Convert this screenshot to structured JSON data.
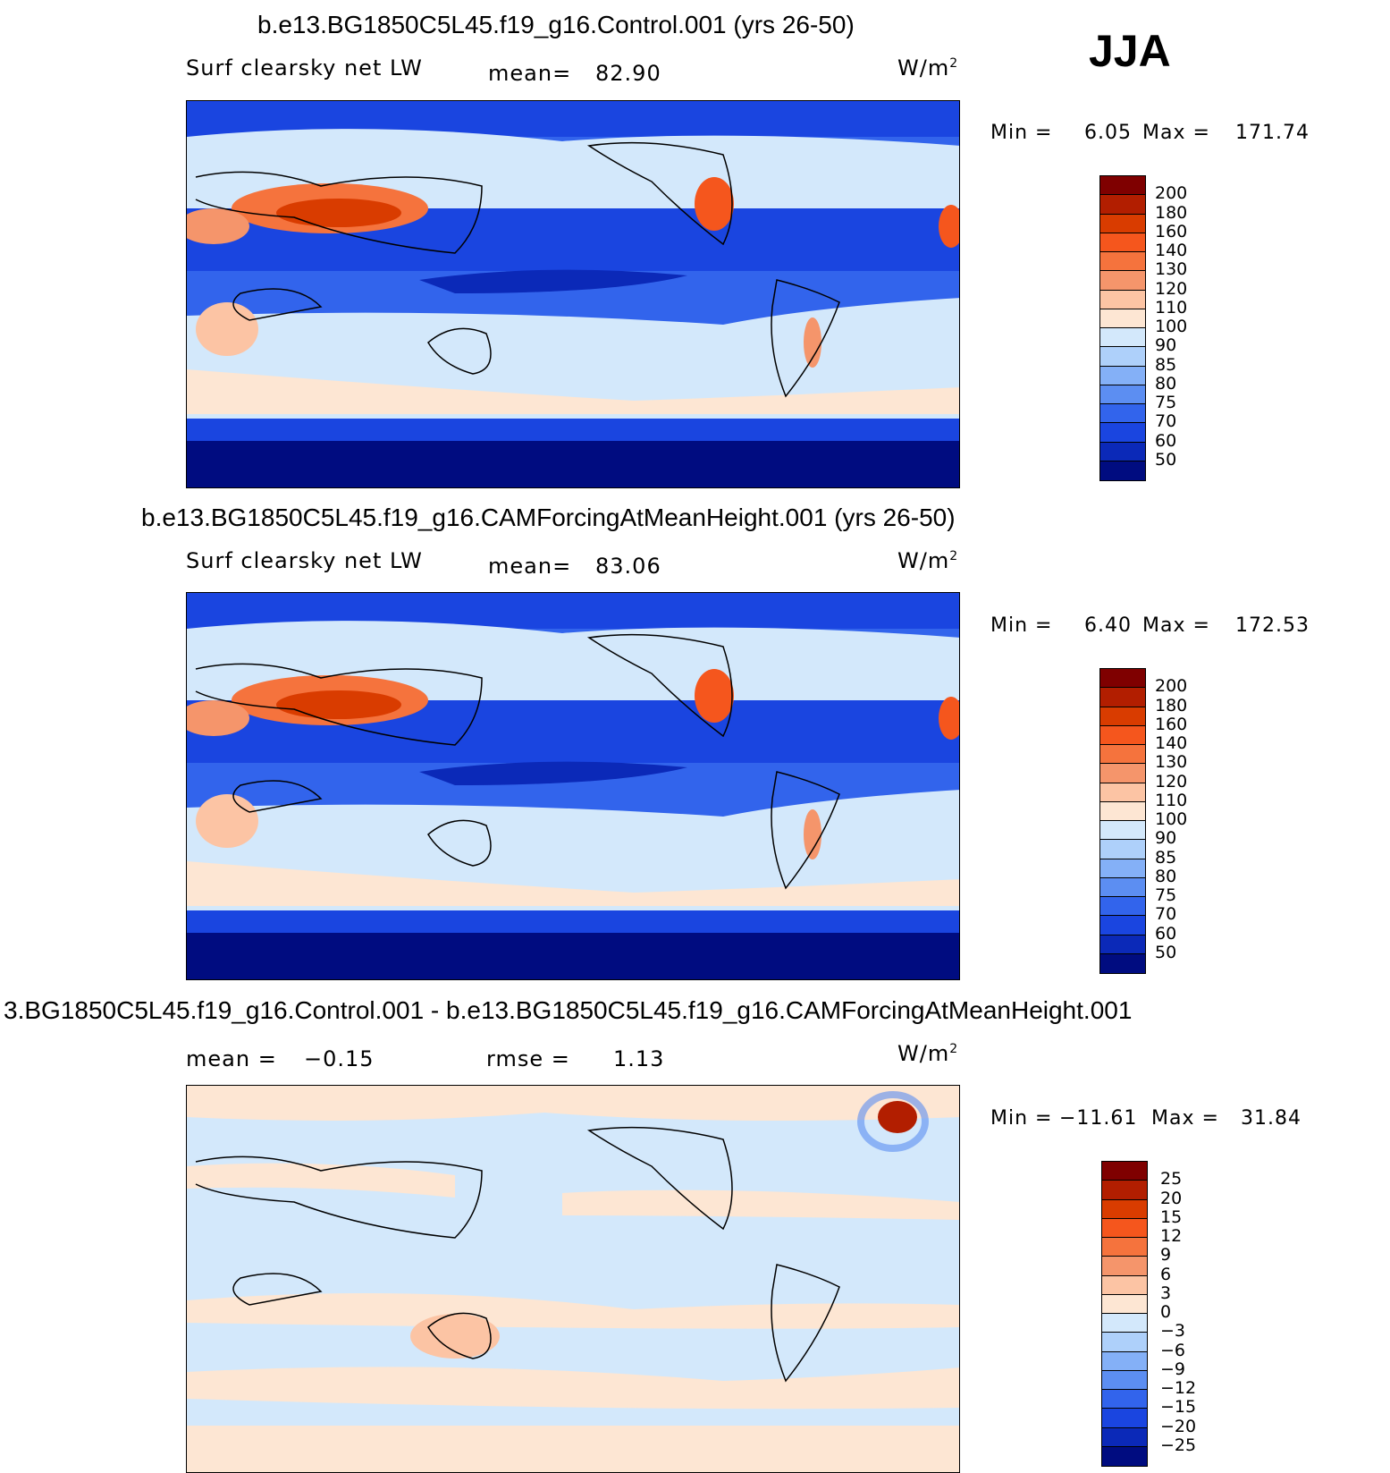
{
  "season": "JJA",
  "chart_data": [
    {
      "type": "heatmap",
      "title": "b.e13.BG1850C5L45.f19_g16.Control.001 (yrs 26-50)",
      "variable": "Surf clearsky net LW",
      "mean_label": "mean=",
      "mean": "82.90",
      "units": "W/m",
      "units_sup": "2",
      "min_label": "Min =",
      "min": "6.05",
      "max_label": "Max =",
      "max": "171.74",
      "levels": [
        "200",
        "180",
        "160",
        "140",
        "130",
        "120",
        "110",
        "100",
        "90",
        "85",
        "80",
        "75",
        "70",
        "60",
        "50"
      ],
      "colors": [
        "#7f0000",
        "#b21e00",
        "#d93c00",
        "#f5561d",
        "#f5733d",
        "#f5956b",
        "#fcc4a4",
        "#fde6d3",
        "#d3e8fb",
        "#aed0fa",
        "#84b0f7",
        "#5c8ef2",
        "#3264ec",
        "#1a45e0",
        "#0b29b8",
        "#000c80"
      ]
    },
    {
      "type": "heatmap",
      "title": "b.e13.BG1850C5L45.f19_g16.CAMForcingAtMeanHeight.001 (yrs 26-50)",
      "variable": "Surf clearsky net LW",
      "mean_label": "mean=",
      "mean": "83.06",
      "units": "W/m",
      "units_sup": "2",
      "min_label": "Min =",
      "min": "6.40",
      "max_label": "Max =",
      "max": "172.53",
      "levels": [
        "200",
        "180",
        "160",
        "140",
        "130",
        "120",
        "110",
        "100",
        "90",
        "85",
        "80",
        "75",
        "70",
        "60",
        "50"
      ],
      "colors": [
        "#7f0000",
        "#b21e00",
        "#d93c00",
        "#f5561d",
        "#f5733d",
        "#f5956b",
        "#fcc4a4",
        "#fde6d3",
        "#d3e8fb",
        "#aed0fa",
        "#84b0f7",
        "#5c8ef2",
        "#3264ec",
        "#1a45e0",
        "#0b29b8",
        "#000c80"
      ]
    },
    {
      "type": "heatmap",
      "title": "3.BG1850C5L45.f19_g16.Control.001 - b.e13.BG1850C5L45.f19_g16.CAMForcingAtMeanHeight.001",
      "mean_label": "mean =",
      "mean": "−0.15",
      "rmse_label": "rmse =",
      "rmse": "1.13",
      "units": "W/m",
      "units_sup": "2",
      "min_label": "Min =",
      "min": "−11.61",
      "max_label": "Max =",
      "max": "31.84",
      "levels": [
        "25",
        "20",
        "15",
        "12",
        "9",
        "6",
        "3",
        "0",
        "−3",
        "−6",
        "−9",
        "−12",
        "−15",
        "−20",
        "−25"
      ],
      "colors": [
        "#7f0000",
        "#b21e00",
        "#d93c00",
        "#f5561d",
        "#f5733d",
        "#f5956b",
        "#fcc4a4",
        "#fde6d3",
        "#d3e8fb",
        "#aed0fa",
        "#84b0f7",
        "#5c8ef2",
        "#3264ec",
        "#1a45e0",
        "#0b29b8",
        "#000c80"
      ]
    }
  ]
}
